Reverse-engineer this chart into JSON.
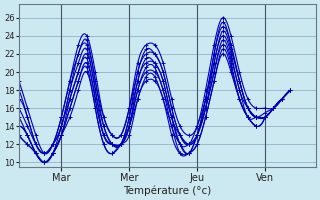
{
  "xlabel": "Température (°c)",
  "bg_color": "#cce8f0",
  "grid_color": "#99bbcc",
  "line_color": "#0000bb",
  "ylim": [
    9.5,
    27.5
  ],
  "yticks": [
    10,
    12,
    14,
    16,
    18,
    20,
    22,
    24,
    26
  ],
  "xlim": [
    0,
    210
  ],
  "xtick_positions": [
    30,
    78,
    126,
    174
  ],
  "xtick_labels": [
    "Mar",
    "Mer",
    "Jeu",
    "Ven"
  ],
  "series": [
    {
      "x": [
        0,
        6,
        12,
        18,
        24,
        30,
        36,
        42,
        48,
        54,
        60,
        66,
        72,
        78,
        84,
        90,
        96,
        102,
        108,
        114,
        120,
        126,
        132,
        138,
        144,
        150,
        156,
        162,
        168,
        174,
        180,
        186,
        192
      ],
      "y": [
        19,
        16,
        13,
        11,
        12,
        15,
        19,
        23,
        24,
        20,
        15,
        13,
        13,
        16,
        21,
        23,
        23,
        21,
        17,
        14,
        13,
        14,
        18,
        23,
        26,
        24,
        20,
        17,
        16,
        16,
        16,
        17,
        18
      ]
    },
    {
      "x": [
        0,
        6,
        12,
        18,
        24,
        30,
        36,
        42,
        48,
        54,
        60,
        66,
        72,
        78,
        84,
        90,
        96,
        102,
        108,
        114,
        120,
        126,
        132,
        138,
        144,
        150,
        156,
        162,
        168,
        174,
        180,
        186,
        192
      ],
      "y": [
        18,
        15,
        12,
        11,
        12,
        15,
        19,
        22,
        23.5,
        19,
        15,
        13,
        13,
        16,
        20,
        22.5,
        22,
        20,
        16,
        13,
        12,
        14,
        17,
        22,
        25.5,
        23,
        19,
        16,
        15,
        15.5,
        16,
        17,
        18
      ]
    },
    {
      "x": [
        0,
        6,
        12,
        18,
        24,
        30,
        36,
        42,
        48,
        54,
        60,
        66,
        72,
        78,
        84,
        90,
        96,
        102,
        108,
        114,
        120,
        126,
        132,
        138,
        144,
        150,
        156,
        162,
        168,
        174,
        180,
        186,
        192
      ],
      "y": [
        17,
        15,
        12,
        11,
        12,
        14,
        18,
        22,
        23,
        19,
        14,
        12,
        12,
        15,
        20,
        22,
        22,
        20,
        16,
        13,
        12,
        13,
        17,
        22,
        25,
        23,
        19,
        16,
        15,
        15,
        16,
        17,
        18
      ]
    },
    {
      "x": [
        0,
        6,
        12,
        18,
        24,
        30,
        36,
        42,
        48,
        54,
        60,
        66,
        72,
        78,
        84,
        90,
        96,
        102,
        108,
        114,
        120,
        126,
        132,
        138,
        144,
        150,
        156,
        162,
        168,
        174,
        180,
        186,
        192
      ],
      "y": [
        16,
        14,
        12,
        11,
        12,
        14,
        18,
        21,
        22.5,
        18,
        14,
        12,
        12,
        15,
        19,
        21.5,
        21,
        19,
        15,
        13,
        12,
        13,
        17,
        21,
        24.5,
        22.5,
        19,
        16,
        15,
        15,
        16,
        17,
        18
      ]
    },
    {
      "x": [
        0,
        6,
        12,
        18,
        24,
        30,
        36,
        42,
        48,
        54,
        60,
        66,
        72,
        78,
        84,
        90,
        96,
        102,
        108,
        114,
        120,
        126,
        132,
        138,
        144,
        150,
        156,
        162,
        168,
        174,
        180,
        186
      ],
      "y": [
        15,
        13,
        11,
        10,
        11,
        14,
        17,
        20,
        22,
        18,
        13,
        12,
        12,
        14,
        19,
        21,
        21,
        19,
        15,
        12,
        12,
        13,
        16,
        21,
        24,
        22,
        18,
        16,
        15,
        15,
        16,
        17
      ]
    },
    {
      "x": [
        0,
        6,
        12,
        18,
        24,
        30,
        36,
        42,
        48,
        54,
        60,
        66,
        72,
        78,
        84,
        90,
        96,
        102,
        108,
        114,
        120,
        126,
        132,
        138,
        144,
        150,
        156,
        162,
        168,
        174,
        180,
        186
      ],
      "y": [
        14,
        13,
        11,
        10,
        11,
        13,
        17,
        20,
        21.5,
        17,
        13,
        12,
        12,
        14,
        18,
        20.5,
        20.5,
        18,
        15,
        12,
        11,
        13,
        16,
        20,
        23.5,
        21.5,
        18,
        15,
        15,
        15,
        16,
        17
      ]
    },
    {
      "x": [
        0,
        6,
        12,
        18,
        24,
        30,
        36,
        42,
        48,
        54,
        60,
        66,
        72,
        78,
        84,
        90,
        96,
        102,
        108,
        114,
        120,
        126,
        132,
        138,
        144,
        150,
        156,
        162,
        168,
        174
      ],
      "y": [
        14,
        13,
        11,
        10,
        11,
        13,
        16,
        19,
        21,
        17,
        13,
        12,
        12,
        14,
        18,
        20,
        20,
        18,
        14,
        12,
        11,
        13,
        16,
        20,
        23,
        21,
        17,
        15,
        14,
        15
      ]
    },
    {
      "x": [
        0,
        6,
        12,
        18,
        24,
        30,
        36,
        42,
        48,
        54,
        60,
        66,
        72,
        78,
        84,
        90,
        96,
        102,
        108,
        114,
        120,
        126,
        132,
        138,
        144,
        150,
        156,
        162,
        168,
        174
      ],
      "y": [
        13,
        12,
        11,
        10,
        11,
        13,
        16,
        19,
        20.5,
        16,
        12,
        11,
        12,
        14,
        17,
        19.5,
        19.5,
        17,
        14,
        11,
        11,
        12,
        15,
        19,
        22.5,
        20.5,
        17,
        15,
        14,
        15
      ]
    },
    {
      "x": [
        0,
        6,
        12,
        18,
        24,
        30,
        36,
        42,
        48,
        54,
        60,
        66,
        72,
        78,
        84,
        90,
        96,
        102,
        108,
        114,
        120,
        126,
        132,
        138,
        144,
        150,
        156,
        162,
        168
      ],
      "y": [
        13,
        12,
        11,
        10,
        11,
        13,
        15,
        18,
        20,
        16,
        12,
        11,
        12,
        13,
        17,
        19,
        19,
        17,
        13,
        11,
        11,
        12,
        15,
        19,
        22,
        20,
        17,
        15,
        14
      ]
    }
  ]
}
